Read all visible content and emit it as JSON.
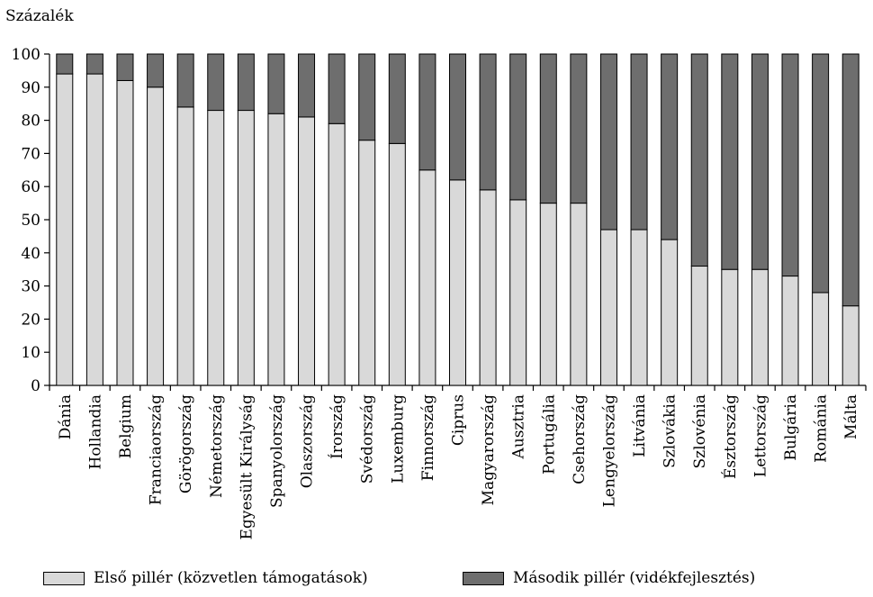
{
  "chart_data": {
    "type": "bar",
    "stacked": true,
    "ylabel": "Százalék",
    "xlabel": "",
    "ylim": [
      0,
      100
    ],
    "yticks": [
      0,
      10,
      20,
      30,
      40,
      50,
      60,
      70,
      80,
      90,
      100
    ],
    "categories": [
      "Dánia",
      "Hollandia",
      "Belgium",
      "Franciaország",
      "Görögország",
      "Németország",
      "Egyesült Királyság",
      "Spanyolország",
      "Olaszország",
      "Írország",
      "Svédország",
      "Luxemburg",
      "Finnország",
      "Ciprus",
      "Magyarország",
      "Ausztria",
      "Portugália",
      "Csehország",
      "Lengyelország",
      "Litvánia",
      "Szlovákia",
      "Szlovénia",
      "Észtország",
      "Lettország",
      "Bulgária",
      "Románia",
      "Málta"
    ],
    "series": [
      {
        "name": "Első pillér (közvetlen támogatások)",
        "color": "#d9d9d9",
        "values": [
          94,
          94,
          92,
          90,
          84,
          83,
          83,
          82,
          81,
          79,
          74,
          73,
          65,
          62,
          59,
          56,
          55,
          55,
          47,
          47,
          44,
          36,
          35,
          35,
          33,
          28,
          24
        ]
      },
      {
        "name": "Második pillér (vidékfejlesztés)",
        "color": "#6e6e6e",
        "values": [
          6,
          6,
          8,
          10,
          16,
          17,
          17,
          18,
          19,
          21,
          26,
          27,
          35,
          38,
          41,
          44,
          45,
          45,
          53,
          53,
          56,
          64,
          65,
          65,
          67,
          72,
          76
        ]
      }
    ],
    "grid": false,
    "legend_position": "bottom"
  }
}
